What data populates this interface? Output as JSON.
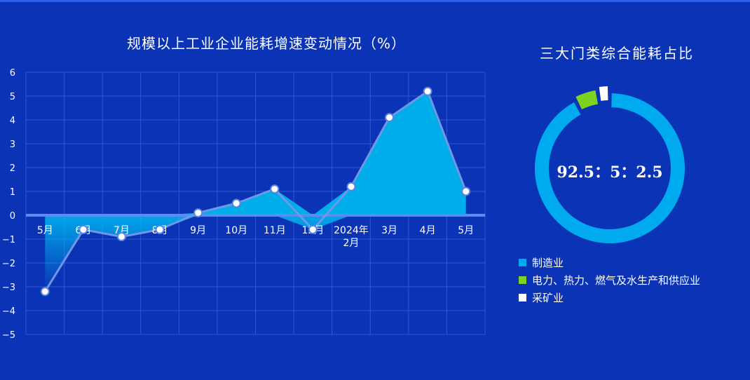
{
  "chart_data": [
    {
      "type": "area",
      "title": "规模以上工业企业能耗增速变动情况（%）",
      "categories": [
        "5月",
        "6月",
        "7月",
        "8月",
        "9月",
        "10月",
        "11月",
        "12月",
        "2024年\n2月",
        "3月",
        "4月",
        "5月"
      ],
      "values": [
        -3.2,
        -0.6,
        -0.9,
        -0.6,
        0.1,
        0.5,
        1.1,
        -0.6,
        1.2,
        4.1,
        5.2,
        1.0
      ],
      "ylim": [
        -5,
        6
      ],
      "yticks": [
        6,
        5,
        4,
        3,
        2,
        1,
        0,
        -1,
        -2,
        -3,
        -4,
        -5
      ],
      "ytick_labels": [
        "6",
        "5",
        "4",
        "3",
        "2",
        "1",
        "0",
        "−1",
        "−2",
        "−3",
        "−4",
        "−5"
      ],
      "grid": true,
      "colors": {
        "fill": "#00b4ee",
        "line": "#6f97e6",
        "marker_fill": "#ffffff",
        "marker_stroke": "#5b85dd",
        "baseline": "#5a8df0",
        "grid": "#2f5ad0"
      }
    },
    {
      "type": "pie",
      "title": "三大门类综合能耗占比",
      "annotation": "92.5：5：2.5",
      "slices": [
        {
          "label": "制造业",
          "value": 92.5,
          "color": "#00aaee"
        },
        {
          "label": "电力、热力、燃气及水生产和供应业",
          "value": 5,
          "color": "#7ed321"
        },
        {
          "label": "采矿业",
          "value": 2.5,
          "color": "#ffffff"
        }
      ]
    }
  ]
}
